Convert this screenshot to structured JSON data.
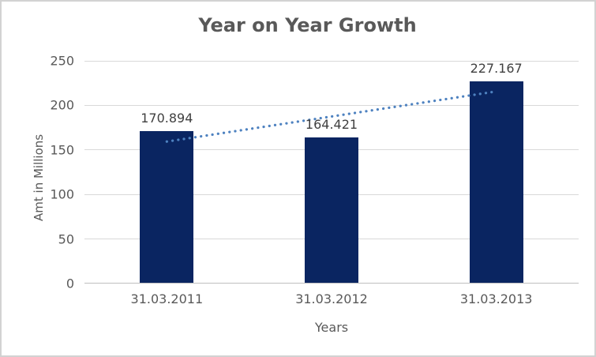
{
  "chart_data": {
    "type": "bar",
    "title": "Year on Year Growth",
    "categories": [
      "31.03.2011",
      "31.03.2012",
      "31.03.2013"
    ],
    "values": [
      170.894,
      164.421,
      227.167
    ],
    "data_labels": [
      "170.894",
      "164.421",
      "227.167"
    ],
    "xlabel": "Years",
    "ylabel": "Amt in Millions",
    "ylim": [
      0,
      250
    ],
    "ytick_step": 50,
    "yticks": [
      "0",
      "50",
      "100",
      "150",
      "200",
      "250"
    ],
    "grid": "horizontal",
    "legend": "none",
    "trendline": {
      "type": "linear",
      "style": "dotted"
    },
    "colors": {
      "bar": "#0a2561",
      "trendline": "#4e82c0",
      "gridline": "#d9d9d9",
      "axis_line": "#bfbfbf",
      "title_text": "#595959",
      "axis_text": "#595959",
      "data_label_text": "#404040",
      "frame_border": "#d2d2d2",
      "background": "#ffffff"
    }
  }
}
